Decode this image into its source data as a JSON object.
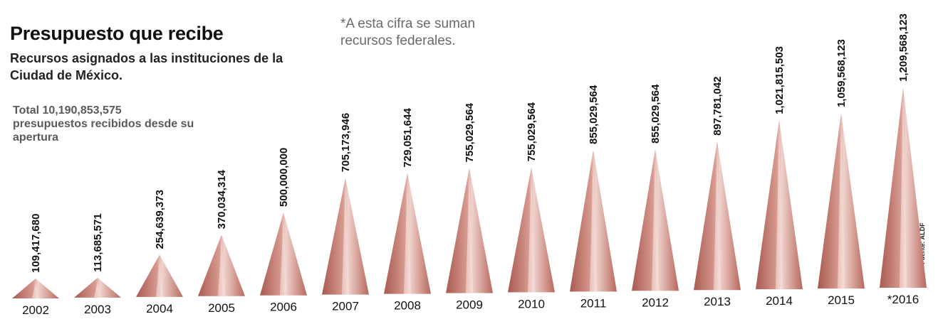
{
  "header": {
    "title": "Presupuesto que recibe",
    "subtitle": "Recursos asignados a las instituciones de la Ciudad de México.",
    "total": "Total 10,190,853,575 presupuestos recibidos desde su apertura",
    "note": "*A esta cifra se suman recursos federales.",
    "source": "Fuente: ALDF"
  },
  "colors": {
    "cone_dark": "#b7685d",
    "cone_light": "#e9c6bf",
    "label": "#111111"
  },
  "chart_data": {
    "type": "bar",
    "style": "triangles",
    "categories": [
      "2002",
      "2003",
      "2004",
      "2005",
      "2006",
      "2007",
      "2008",
      "2009",
      "2010",
      "2011",
      "2012",
      "2013",
      "2014",
      "2015",
      "*2016"
    ],
    "values": [
      109417680,
      113685571,
      254639373,
      370034314,
      500000000,
      705173946,
      729051644,
      755029564,
      755029564,
      855029564,
      855029564,
      897781042,
      1021815503,
      1059568123,
      1209568123
    ],
    "value_labels": [
      "109,417,680",
      "113,685,571",
      "254,639,373",
      "370,034,314",
      "500,000,000",
      "705,173,946",
      "729,051,644",
      "755,029,564",
      "755,029,564",
      "855,029,564",
      "855,029,564",
      "897,781,042",
      "1,021,815,503",
      "1,059,568,123",
      "1,209,568,123"
    ],
    "title": "Presupuesto que recibe",
    "xlabel": "",
    "ylabel": "",
    "grid": false,
    "legend": "none"
  }
}
